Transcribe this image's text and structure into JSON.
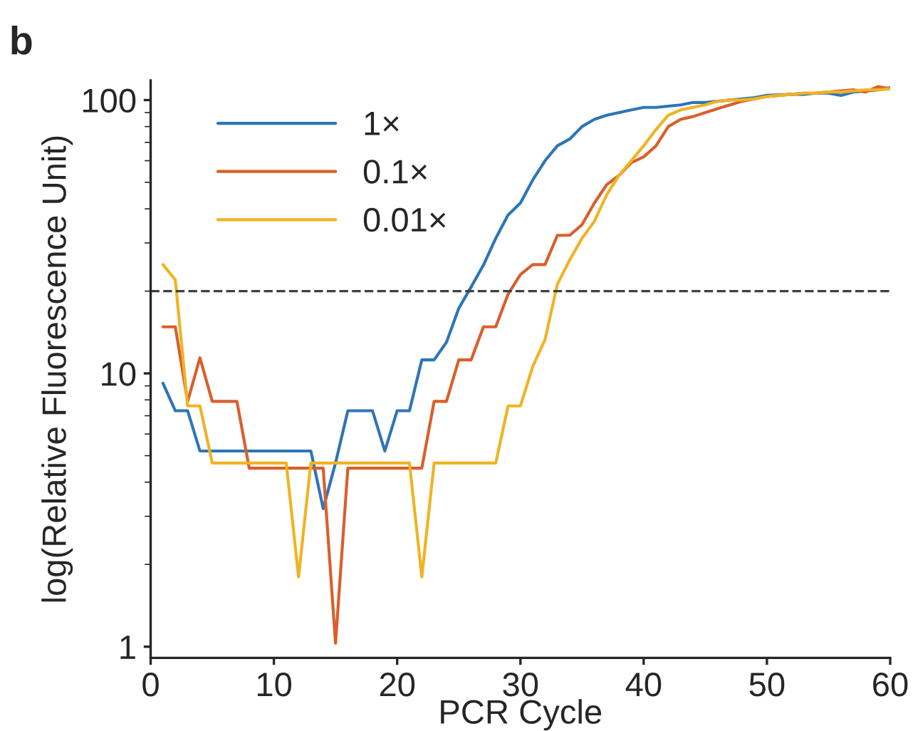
{
  "chart_data": {
    "type": "line",
    "title": "b",
    "xlabel": "PCR Cycle",
    "ylabel": "log(Relative Fluorescence Unit)",
    "x": [
      1,
      2,
      3,
      4,
      5,
      6,
      7,
      8,
      9,
      10,
      11,
      12,
      13,
      14,
      15,
      16,
      17,
      18,
      19,
      20,
      21,
      22,
      23,
      24,
      25,
      26,
      27,
      28,
      29,
      30,
      31,
      32,
      33,
      34,
      35,
      36,
      37,
      38,
      39,
      40,
      41,
      42,
      43,
      44,
      45,
      46,
      47,
      48,
      49,
      50,
      51,
      52,
      53,
      54,
      55,
      56,
      57,
      58,
      59,
      60
    ],
    "series": [
      {
        "name": "1×",
        "color": "#2e75b6",
        "values": [
          9.2,
          7.3,
          7.3,
          5.2,
          5.2,
          5.2,
          5.2,
          5.2,
          5.2,
          5.2,
          5.2,
          5.2,
          5.2,
          3.2,
          4.7,
          7.3,
          7.3,
          7.3,
          5.2,
          7.3,
          7.3,
          11.2,
          11.2,
          13,
          17.3,
          20.7,
          24.9,
          31.2,
          38,
          42,
          51,
          60,
          68,
          72,
          80,
          85,
          88,
          90,
          92,
          94,
          94,
          95,
          96,
          98,
          98,
          99,
          100,
          101,
          102,
          104,
          null,
          105,
          105,
          106,
          106,
          104,
          107,
          108,
          109,
          111
        ]
      },
      {
        "name": "0.1×",
        "color": "#d95f2b",
        "values": [
          14.8,
          14.8,
          7.9,
          11.4,
          7.9,
          7.9,
          7.9,
          4.5,
          4.5,
          4.5,
          4.5,
          4.5,
          4.5,
          4.5,
          1.03,
          4.5,
          4.5,
          4.5,
          4.5,
          4.5,
          4.5,
          4.5,
          7.9,
          7.9,
          11.2,
          11.2,
          14.8,
          14.8,
          19.5,
          23,
          25,
          25,
          32,
          32,
          35,
          42,
          49,
          53,
          59,
          62,
          68,
          80,
          85,
          87,
          90,
          93,
          96,
          99,
          101,
          103,
          104,
          105,
          106,
          106,
          107,
          108,
          109,
          107,
          112,
          110
        ]
      },
      {
        "name": "0.01×",
        "color": "#f0b323",
        "values": [
          25,
          22,
          7.6,
          7.6,
          4.7,
          4.7,
          4.7,
          4.7,
          4.7,
          4.7,
          4.7,
          1.8,
          4.7,
          4.7,
          4.7,
          4.7,
          4.7,
          4.7,
          4.7,
          4.7,
          4.7,
          1.8,
          4.7,
          4.7,
          4.7,
          4.7,
          4.7,
          4.7,
          7.6,
          7.6,
          10.6,
          13.3,
          21.2,
          26,
          31.2,
          36,
          45,
          53,
          60,
          68,
          78,
          88,
          92,
          94,
          96,
          99,
          100,
          100,
          101,
          103,
          104,
          105,
          106,
          106,
          107,
          107,
          108,
          109,
          109,
          110
        ]
      }
    ],
    "log": "y",
    "xlim": [
      0,
      60
    ],
    "xticks": [
      0,
      10,
      20,
      30,
      40,
      50,
      60
    ],
    "ylim": [
      0.91,
      118
    ],
    "yticks": [
      1,
      10,
      100
    ],
    "ref_lines": [
      {
        "axis": "y",
        "value": 20,
        "color": "#404040",
        "line_style": "dashed"
      }
    ],
    "legend": "top left",
    "grid": false
  }
}
